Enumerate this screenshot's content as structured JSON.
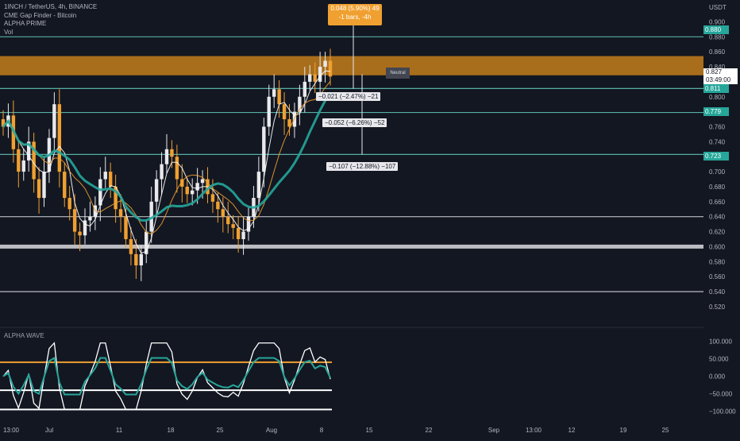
{
  "legend": {
    "title": "1INCH / TetherUS, 4h, BINANCE",
    "line2": "CME Gap Finder - Bitcoin",
    "line3": "ALPHA PRIME",
    "line4": "Vol"
  },
  "tooltip": {
    "line1": "0.048 (5.90%) 49",
    "line2": "-1 bars, -4h"
  },
  "measure_boxes": [
    {
      "text": "−0.021 (−2.47%) −21"
    },
    {
      "text": "−0.052 (−6.26%) −52"
    },
    {
      "text": "−0.107 (−12.88%) −107"
    }
  ],
  "neutral_label": "Neutral",
  "currency": "USDT",
  "current_price": {
    "price": "0.827",
    "countdown": "03:49:00"
  },
  "price_tags": [
    {
      "label": "0.880",
      "color": "#26a69a"
    },
    {
      "label": "0.811",
      "color": "#26a69a"
    },
    {
      "label": "0.779",
      "color": "#26a69a"
    },
    {
      "label": "0.723",
      "color": "#26a69a"
    }
  ],
  "wave_label": "ALPHA WAVE",
  "chart_data": {
    "type": "candlestick",
    "symbol": "1INCH / TetherUS",
    "interval": "4h",
    "exchange": "BINANCE",
    "price_axis": {
      "range": [
        0.505,
        0.91
      ],
      "ticks": [
        "0.900",
        "0.880",
        "0.860",
        "0.840",
        "0.820",
        "0.800",
        "0.780",
        "0.760",
        "0.740",
        "0.720",
        "0.700",
        "0.680",
        "0.660",
        "0.640",
        "0.620",
        "0.600",
        "0.580",
        "0.560",
        "0.540",
        "0.520"
      ]
    },
    "oscillator_axis": {
      "range": [
        -110,
        110
      ],
      "ticks": [
        "100.000",
        "50.000",
        "0.000",
        "−50.000",
        "−100.000"
      ]
    },
    "time_axis": [
      "13:00",
      "Jul",
      "11",
      "18",
      "25",
      "Aug",
      "8",
      "15",
      "22",
      "Sep",
      "13:00",
      "12",
      "19",
      "25"
    ],
    "close_series": [
      0.76,
      0.775,
      0.73,
      0.7,
      0.715,
      0.74,
      0.69,
      0.665,
      0.7,
      0.745,
      0.79,
      0.7,
      0.665,
      0.65,
      0.62,
      0.615,
      0.635,
      0.64,
      0.655,
      0.69,
      0.7,
      0.68,
      0.65,
      0.64,
      0.61,
      0.59,
      0.575,
      0.59,
      0.62,
      0.66,
      0.69,
      0.71,
      0.73,
      0.72,
      0.69,
      0.68,
      0.67,
      0.675,
      0.685,
      0.69,
      0.67,
      0.66,
      0.65,
      0.64,
      0.63,
      0.625,
      0.61,
      0.62,
      0.64,
      0.665,
      0.7,
      0.76,
      0.8,
      0.81,
      0.79,
      0.77,
      0.76,
      0.78,
      0.8,
      0.82,
      0.83,
      0.82,
      0.84,
      0.848,
      0.827
    ],
    "horizontal_levels": [
      0.88,
      0.811,
      0.779,
      0.723,
      0.64,
      0.6,
      0.54
    ],
    "resistance_zone": [
      0.835,
      0.85
    ],
    "current_price": 0.827,
    "oscillator_levels": [
      40,
      -40,
      -95
    ]
  }
}
